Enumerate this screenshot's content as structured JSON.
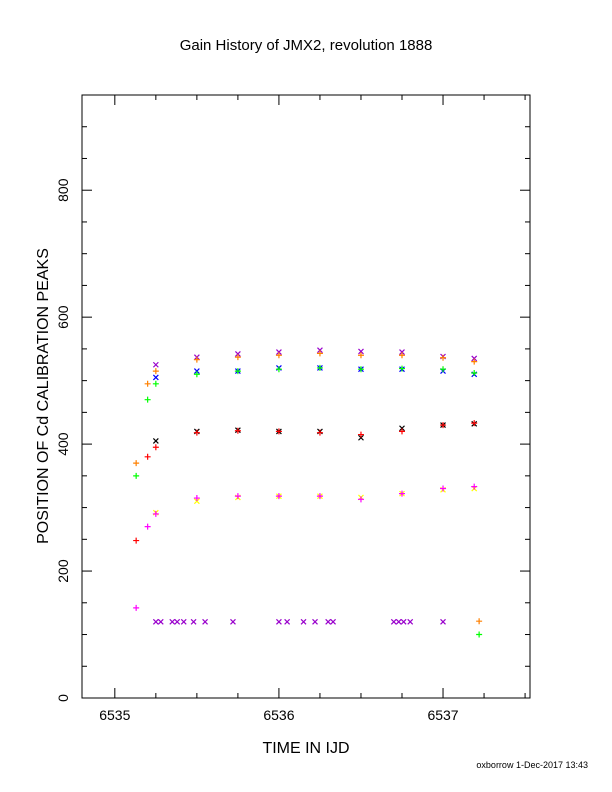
{
  "chart_data": {
    "type": "scatter",
    "title": "Gain History of JMX2, revolution 1888",
    "xlabel": "TIME IN IJD",
    "ylabel": "POSITION OF Cd CALIBRATION PEAKS",
    "xlim": [
      6534.8,
      6537.53
    ],
    "ylim": [
      0,
      950
    ],
    "xticks": [
      "6535",
      "6536",
      "6537"
    ],
    "yticks": [
      "0",
      "200",
      "400",
      "600",
      "800"
    ],
    "grid": false,
    "legend": "none",
    "series": [
      {
        "marker": "x",
        "color": "#9900cc",
        "x": [
          6535.25,
          6535.5,
          6535.75,
          6536.0,
          6536.25,
          6536.5,
          6536.75,
          6537.0,
          6537.19
        ],
        "y": [
          525,
          537,
          542,
          545,
          548,
          546,
          545,
          538,
          535
        ]
      },
      {
        "marker": "x",
        "color": "#0000ff",
        "x": [
          6535.25,
          6535.5,
          6535.75,
          6536.0,
          6536.25,
          6536.5,
          6536.75,
          6537.0,
          6537.19
        ],
        "y": [
          505,
          515,
          515,
          520,
          520,
          518,
          518,
          515,
          510
        ]
      },
      {
        "marker": "+",
        "color": "#ff8000",
        "x": [
          6535.13,
          6535.2,
          6535.25,
          6535.5,
          6535.75,
          6536.0,
          6536.25,
          6536.5,
          6536.75,
          6537.0,
          6537.19
        ],
        "y": [
          370,
          495,
          515,
          533,
          537,
          540,
          543,
          540,
          540,
          536,
          530
        ]
      },
      {
        "marker": "+",
        "color": "#00ff00",
        "x": [
          6535.13,
          6535.2,
          6535.25,
          6535.5,
          6535.75,
          6536.0,
          6536.25,
          6536.5,
          6536.75,
          6537.0,
          6537.19
        ],
        "y": [
          350,
          470,
          495,
          510,
          515,
          518,
          520,
          518,
          519,
          518,
          512
        ]
      },
      {
        "marker": "x",
        "color": "#000000",
        "x": [
          6535.25,
          6535.5,
          6535.75,
          6536.0,
          6536.25,
          6536.5,
          6536.75,
          6537.0,
          6537.19
        ],
        "y": [
          405,
          420,
          422,
          420,
          420,
          410,
          425,
          430,
          432
        ]
      },
      {
        "marker": "+",
        "color": "#ff0000",
        "x": [
          6535.13,
          6535.2,
          6535.25,
          6535.5,
          6535.75,
          6536.0,
          6536.25,
          6536.5,
          6536.75,
          6537.0,
          6537.19
        ],
        "y": [
          248,
          380,
          395,
          418,
          421,
          420,
          418,
          415,
          420,
          430,
          433
        ]
      },
      {
        "marker": "x",
        "color": "#ffff00",
        "x": [
          6535.25,
          6535.5,
          6535.75,
          6536.0,
          6536.25,
          6536.5,
          6536.75,
          6537.0,
          6537.19
        ],
        "y": [
          292,
          310,
          316,
          318,
          318,
          316,
          322,
          328,
          330
        ]
      },
      {
        "marker": "+",
        "color": "#ff00ff",
        "x": [
          6535.13,
          6535.2,
          6535.25,
          6535.5,
          6535.75,
          6536.0,
          6536.25,
          6536.5,
          6536.75,
          6537.0,
          6537.19
        ],
        "y": [
          142,
          270,
          290,
          315,
          318,
          318,
          318,
          313,
          322,
          330,
          333
        ]
      },
      {
        "marker": "x",
        "color": "#9900cc",
        "x": [
          6535.25,
          6535.28,
          6535.35,
          6535.38,
          6535.42,
          6535.48,
          6535.55,
          6535.72,
          6536.0,
          6536.05,
          6536.15,
          6536.22,
          6536.3,
          6536.33,
          6536.7,
          6536.73,
          6536.76,
          6536.8,
          6537.0
        ],
        "y": [
          120,
          120,
          120,
          120,
          120,
          120,
          120,
          120,
          120,
          120,
          120,
          120,
          120,
          120,
          120,
          120,
          120,
          120,
          120
        ]
      },
      {
        "marker": "+",
        "color": "#ff8000",
        "x": [
          6537.22
        ],
        "y": [
          121
        ]
      },
      {
        "marker": "+",
        "color": "#00ff00",
        "x": [
          6537.22
        ],
        "y": [
          100
        ]
      }
    ]
  },
  "footer": "oxborrow 1-Dec-2017 13:43"
}
